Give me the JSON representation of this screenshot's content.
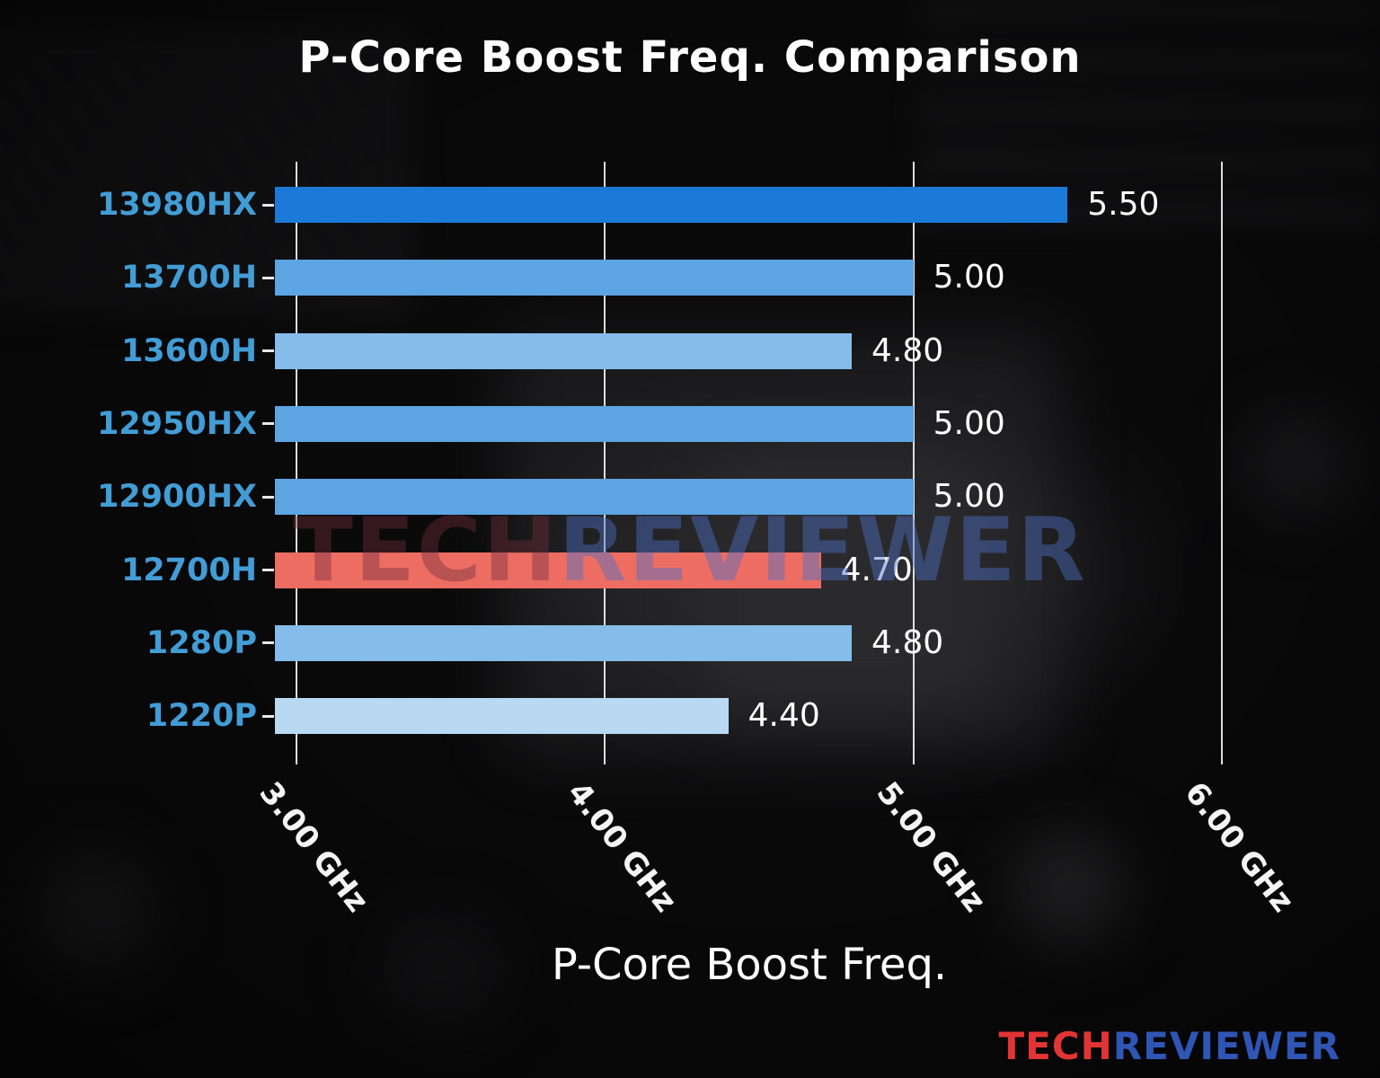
{
  "chart_data": {
    "type": "bar",
    "orientation": "horizontal",
    "title": "P-Core Boost Freq. Comparison",
    "xlabel": "P-Core Boost Freq.",
    "categories": [
      "13980HX",
      "13700H",
      "13600H",
      "12950HX",
      "12900HX",
      "12700H",
      "1280P",
      "1220P"
    ],
    "values": [
      5.5,
      5.0,
      4.8,
      5.0,
      5.0,
      4.7,
      4.8,
      4.4
    ],
    "value_labels": [
      "5.50",
      "5.00",
      "4.80",
      "5.00",
      "5.00",
      "4.70",
      "4.80",
      "4.40"
    ],
    "bar_colors": [
      "#1b7ad8",
      "#5ca4e2",
      "#85bce9",
      "#5ca4e2",
      "#5ca4e2",
      "#ed6d63",
      "#85bce9",
      "#b9d9f3"
    ],
    "highlight_index": 5,
    "highlight_category": "12700H",
    "xlim": [
      3.0,
      6.0
    ],
    "xticks": [
      3.0,
      4.0,
      5.0,
      6.0
    ],
    "xtick_labels": [
      "3.00 GHz",
      "4.00 GHz",
      "5.00 GHz",
      "6.00 GHz"
    ],
    "grid": true,
    "legend": "none",
    "unit": "GHz",
    "colors": {
      "category_label": "#429dd6",
      "value_label": "#ffffff",
      "gridline": "#eeeeee",
      "title": "#ffffff",
      "highlight_bar": "#ed6d63"
    }
  },
  "watermark": {
    "tech": "TECH",
    "reviewer": "REVIEWER"
  },
  "logo": {
    "tech": "TECH",
    "reviewer": "REVIEWER"
  }
}
